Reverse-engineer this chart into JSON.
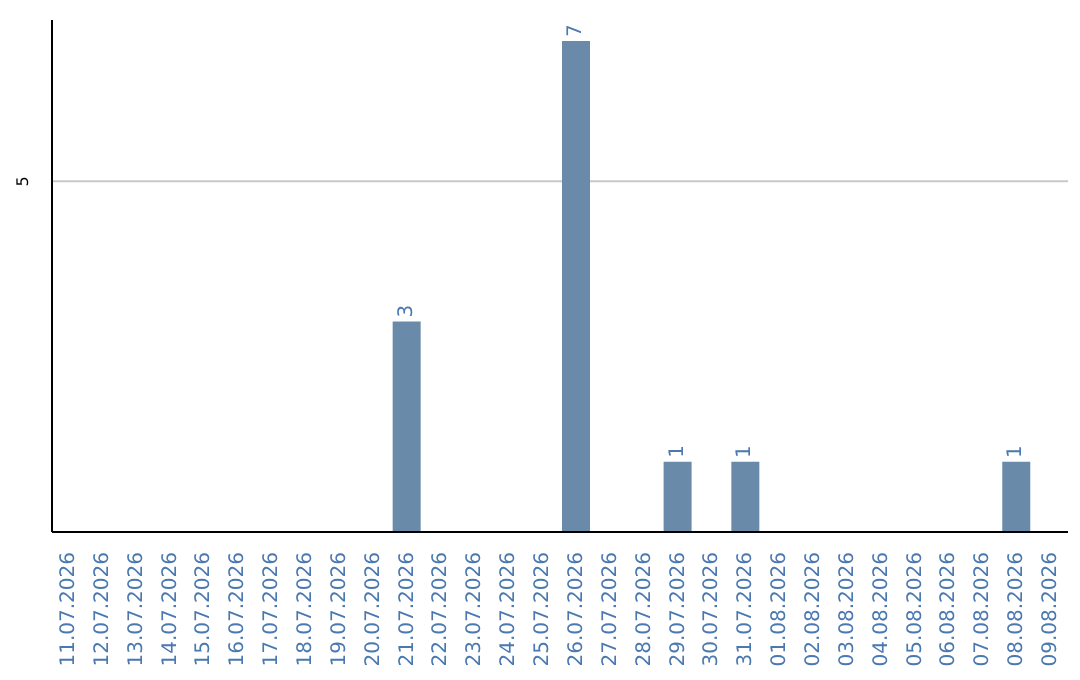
{
  "chart_data": {
    "type": "bar",
    "categories": [
      "11.07.2026",
      "12.07.2026",
      "13.07.2026",
      "14.07.2026",
      "15.07.2026",
      "16.07.2026",
      "17.07.2026",
      "18.07.2026",
      "19.07.2026",
      "20.07.2026",
      "21.07.2026",
      "22.07.2026",
      "23.07.2026",
      "24.07.2026",
      "25.07.2026",
      "26.07.2026",
      "27.07.2026",
      "28.07.2026",
      "29.07.2026",
      "30.07.2026",
      "31.07.2026",
      "01.08.2026",
      "02.08.2026",
      "03.08.2026",
      "04.08.2026",
      "05.08.2026",
      "06.08.2026",
      "07.08.2026",
      "08.08.2026",
      "09.08.2026"
    ],
    "values": [
      0,
      0,
      0,
      0,
      0,
      0,
      0,
      0,
      0,
      0,
      3,
      0,
      0,
      0,
      0,
      7,
      0,
      0,
      1,
      0,
      1,
      0,
      0,
      0,
      0,
      0,
      0,
      0,
      1,
      0
    ],
    "value_labels": [
      null,
      null,
      null,
      null,
      null,
      null,
      null,
      null,
      null,
      null,
      "3",
      null,
      null,
      null,
      null,
      "7",
      null,
      null,
      "1",
      null,
      "1",
      null,
      null,
      null,
      null,
      null,
      null,
      null,
      "1",
      null
    ],
    "color": "#6a8aaa",
    "ylim": [
      0,
      7.3
    ],
    "yticks": [
      5
    ],
    "grid": "y"
  }
}
